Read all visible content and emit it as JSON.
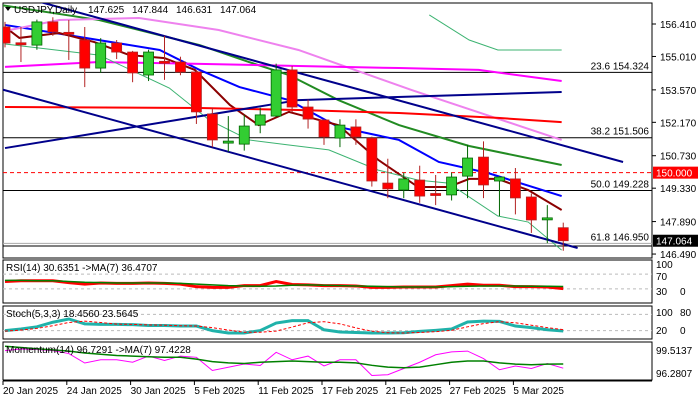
{
  "chart_data": {
    "type": "candlestick",
    "symbol_title": "USDJPY,Daily",
    "ohlc_readout": [
      "147.625",
      "147.844",
      "146.631",
      "147.064"
    ],
    "price_axis": {
      "min": 146.49,
      "max": 156.41,
      "ticks": [
        "156.410",
        "155.010",
        "153.570",
        "152.170",
        "150.730",
        "149.330",
        "147.890",
        "146.490"
      ]
    },
    "price_markers": [
      {
        "label": "150.000",
        "value": 150.0,
        "color": "#ff0000",
        "text_color": "#ffffff",
        "dashed": true
      },
      {
        "label": "147.064",
        "value": 147.064,
        "color": "#000000",
        "text_color": "#ffffff",
        "dashed": false
      }
    ],
    "fib_levels": [
      {
        "label": "23.6 154.324",
        "value": 154.324
      },
      {
        "label": "38.2 151.506",
        "value": 151.506
      },
      {
        "label": "50.0 149.228",
        "value": 149.228
      },
      {
        "label": "61.8 146.950",
        "value": 146.95
      }
    ],
    "dates": [
      "20 Jan 2025",
      "24 Jan 2025",
      "30 Jan 2025",
      "5 Feb 2025",
      "11 Feb 2025",
      "17 Feb 2025",
      "21 Feb 2025",
      "27 Feb 2025",
      "5 Mar 2025"
    ],
    "candles": [
      [
        156.28,
        156.5,
        155.4,
        155.59
      ],
      [
        155.6,
        156.28,
        154.77,
        155.59
      ],
      [
        155.5,
        156.6,
        155.3,
        156.5
      ],
      [
        156.5,
        156.7,
        155.9,
        156.07
      ],
      [
        156.05,
        156.58,
        154.86,
        156.02
      ],
      [
        155.72,
        156.28,
        153.69,
        154.51
      ],
      [
        154.51,
        155.8,
        154.3,
        155.59
      ],
      [
        155.59,
        155.72,
        154.9,
        155.2
      ],
      [
        155.2,
        155.25,
        153.9,
        154.3
      ],
      [
        154.21,
        155.3,
        153.95,
        155.2
      ],
      [
        154.8,
        155.9,
        154.0,
        154.77
      ],
      [
        154.77,
        155.0,
        154.2,
        154.34
      ],
      [
        154.34,
        154.4,
        152.1,
        152.62
      ],
      [
        152.53,
        152.8,
        151.1,
        151.41
      ],
      [
        151.33,
        152.44,
        150.9,
        151.36
      ],
      [
        151.23,
        152.5,
        150.95,
        152.01
      ],
      [
        152.05,
        152.8,
        151.7,
        152.49
      ],
      [
        152.44,
        154.7,
        152.4,
        154.43
      ],
      [
        154.43,
        154.6,
        152.6,
        152.83
      ],
      [
        152.83,
        153.15,
        151.9,
        152.31
      ],
      [
        152.27,
        152.3,
        151.2,
        151.54
      ],
      [
        151.49,
        152.3,
        151.1,
        152.05
      ],
      [
        151.97,
        152.3,
        151.2,
        151.54
      ],
      [
        151.49,
        151.55,
        149.4,
        149.64
      ],
      [
        149.55,
        150.6,
        148.9,
        149.3
      ],
      [
        149.25,
        150.0,
        148.9,
        149.73
      ],
      [
        149.68,
        150.3,
        148.7,
        148.99
      ],
      [
        149.1,
        149.9,
        148.6,
        149.08
      ],
      [
        149.04,
        150.0,
        148.8,
        149.81
      ],
      [
        149.85,
        151.2,
        148.9,
        150.63
      ],
      [
        150.67,
        151.35,
        148.9,
        149.47
      ],
      [
        149.64,
        149.85,
        148.13,
        149.81
      ],
      [
        149.73,
        150.2,
        148.2,
        148.91
      ],
      [
        148.95,
        149.1,
        147.4,
        147.96
      ],
      [
        148.03,
        148.6,
        146.96,
        148.05
      ],
      [
        147.625,
        147.844,
        146.631,
        147.064
      ]
    ],
    "overlays": [
      {
        "name": "ma-fast-blue",
        "color": "#0000ff",
        "width": 2,
        "points": [
          [
            0,
            156.37
          ],
          [
            4.7,
            155.85
          ],
          [
            9.7,
            155.29
          ],
          [
            12.2,
            154.43
          ],
          [
            14.7,
            153.69
          ],
          [
            17.8,
            153.13
          ],
          [
            20.9,
            151.97
          ],
          [
            24.7,
            151.41
          ],
          [
            27.2,
            150.46
          ],
          [
            30.3,
            149.98
          ],
          [
            34.9,
            148.99
          ]
        ]
      },
      {
        "name": "ma-5-darkred",
        "color": "#8b0000",
        "width": 2,
        "points": [
          [
            0,
            156.28
          ],
          [
            0.9,
            155.81
          ],
          [
            3.4,
            156.02
          ],
          [
            5.6,
            155.63
          ],
          [
            7.8,
            155.07
          ],
          [
            10,
            154.94
          ],
          [
            11.9,
            154.43
          ],
          [
            14.1,
            152.92
          ],
          [
            15.9,
            152.05
          ],
          [
            17.8,
            152.62
          ],
          [
            20.9,
            152.05
          ],
          [
            23.4,
            150.55
          ],
          [
            25.9,
            149.38
          ],
          [
            27.8,
            149.38
          ],
          [
            29.1,
            149.73
          ],
          [
            30.9,
            149.73
          ],
          [
            32.8,
            149.25
          ],
          [
            34.9,
            148.39
          ]
        ]
      },
      {
        "name": "ma-50-green",
        "color": "#228b22",
        "width": 2,
        "points": [
          [
            -0.3,
            157.23
          ],
          [
            5.9,
            156.58
          ],
          [
            12.2,
            155.5
          ],
          [
            15.3,
            154.77
          ],
          [
            17.8,
            154.21
          ],
          [
            20.9,
            153.13
          ],
          [
            24.7,
            152.05
          ],
          [
            29.1,
            151.15
          ],
          [
            34.9,
            150.33
          ]
        ]
      },
      {
        "name": "ma-100-pink",
        "color": "#ee82ee",
        "width": 2,
        "points": [
          [
            0.3,
            156.15
          ],
          [
            3.4,
            156.58
          ],
          [
            8.4,
            156.67
          ],
          [
            13.4,
            156.15
          ],
          [
            18.4,
            155.29
          ],
          [
            25.5,
            153.56
          ],
          [
            34.9,
            151.41
          ]
        ]
      },
      {
        "name": "ma-200-magenta",
        "color": "#ff00ff",
        "width": 2,
        "points": [
          [
            0,
            154.56
          ],
          [
            5.9,
            154.77
          ],
          [
            12.2,
            154.69
          ],
          [
            18.4,
            154.6
          ],
          [
            24.7,
            154.51
          ],
          [
            29.7,
            154.43
          ],
          [
            34.9,
            153.95
          ]
        ]
      },
      {
        "name": "ma-red",
        "color": "#ff0000",
        "width": 2,
        "points": [
          [
            0,
            152.83
          ],
          [
            12.2,
            152.79
          ],
          [
            18.4,
            152.7
          ],
          [
            24.7,
            152.57
          ],
          [
            30.9,
            152.36
          ],
          [
            34.9,
            152.18
          ]
        ]
      },
      {
        "name": "band-lower-green",
        "color": "#3cb371",
        "width": 1,
        "points": [
          [
            0,
            155.55
          ],
          [
            5.9,
            155.07
          ],
          [
            10.3,
            153.65
          ],
          [
            12.8,
            152.27
          ],
          [
            15.3,
            151.41
          ],
          [
            17.8,
            151.19
          ],
          [
            20.3,
            150.98
          ],
          [
            23.4,
            150.11
          ],
          [
            25.9,
            149.68
          ],
          [
            27.8,
            149.55
          ],
          [
            30.9,
            148.13
          ],
          [
            32.8,
            147.87
          ],
          [
            34.9,
            146.66
          ]
        ]
      },
      {
        "name": "band-upper-green",
        "color": "#3cb371",
        "width": 1,
        "points": [
          [
            26.6,
            156.8
          ],
          [
            29.1,
            155.72
          ],
          [
            30.9,
            155.29
          ],
          [
            34.9,
            155.29
          ]
        ]
      },
      {
        "name": "trendline-upper",
        "color": "#00008b",
        "width": 2,
        "points": [
          [
            2.2,
            157.36
          ],
          [
            38.75,
            150.46
          ]
        ]
      },
      {
        "name": "trendline-lower",
        "color": "#00008b",
        "width": 2,
        "points": [
          [
            -0.3,
            153.61
          ],
          [
            35.9,
            146.75
          ]
        ]
      },
      {
        "name": "trendline-rising",
        "color": "#00008b",
        "width": 2,
        "points": [
          [
            0,
            151.06
          ],
          [
            18.4,
            153.13
          ],
          [
            34.9,
            153.48
          ]
        ]
      }
    ],
    "indicators": [
      {
        "name": "rsi",
        "title": "RSI(14) 30.6351  ->MA(7) 36.4707",
        "ticks": [
          "100",
          "70",
          "30",
          "0"
        ],
        "levels": [
          70,
          30
        ],
        "range": [
          0,
          100
        ],
        "series": [
          {
            "name": "RSI",
            "color": "#ff0000",
            "width": 3,
            "dashed": false,
            "values": [
              50,
              52,
              52,
              52,
              47,
              43,
              46,
              45,
              45,
              46,
              45,
              43,
              36,
              34,
              34,
              39,
              39,
              50,
              42,
              41,
              39,
              39,
              38,
              34,
              34,
              35,
              35,
              35,
              39,
              43,
              40,
              40,
              36,
              36,
              35,
              30.6
            ]
          },
          {
            "name": "MA",
            "color": "#008000",
            "width": 1.5,
            "dashed": false,
            "values": [
              53,
              53,
              52,
              52,
              50,
              48,
              47,
              46,
              46,
              46,
              46,
              45,
              43,
              41,
              39,
              38,
              37,
              38,
              40,
              41,
              40,
              39,
              38,
              37,
              36,
              35,
              35,
              35,
              36,
              37,
              38,
              38,
              38,
              37,
              37,
              36.5
            ]
          }
        ]
      },
      {
        "name": "stoch",
        "title": "Stoch(5,3,3) 18.4560 23.5645",
        "ticks": [
          "100",
          "80",
          "20",
          "0"
        ],
        "levels": [
          80,
          20
        ],
        "range": [
          0,
          100
        ],
        "series": [
          {
            "name": "K",
            "color": "#20b2aa",
            "width": 3,
            "dashed": false,
            "values": [
              20,
              26,
              34,
              51,
              63,
              45,
              43,
              43,
              42,
              39,
              39,
              37,
              37,
              20,
              11,
              11,
              20,
              48,
              57,
              57,
              23,
              15,
              13,
              11,
              11,
              12,
              17,
              21,
              26,
              52,
              55,
              54,
              37,
              31,
              23,
              18.5
            ]
          },
          {
            "name": "D",
            "color": "#ff0000",
            "width": 1,
            "dashed": true,
            "values": [
              18,
              22,
              28,
              38,
              50,
              55,
              50,
              44,
              43,
              41,
              40,
              38,
              37,
              31,
              22,
              14,
              14,
              18,
              33,
              49,
              53,
              45,
              30,
              18,
              12,
              11,
              13,
              16,
              21,
              34,
              46,
              53,
              49,
              40,
              31,
              23.6
            ]
          }
        ]
      },
      {
        "name": "momentum",
        "title": "Momentum(14) 96.7291  ->MA(7) 97.4228",
        "ticks": [
          "99.5137",
          "96.2807"
        ],
        "levels": [],
        "range": [
          95.3,
          100.5
        ],
        "series": [
          {
            "name": "Momentum",
            "color": "#ff00ff",
            "width": 1,
            "dashed": false,
            "values": [
              99.59,
              99.84,
              99.76,
              99.59,
              99.11,
              97.57,
              98.1,
              98.1,
              97.7,
              98.7,
              97.98,
              98.7,
              98.5,
              96.36,
              96.89,
              97.41,
              97.17,
              99.31,
              98.1,
              98.7,
              97.09,
              98.1,
              98.1,
              95.55,
              95.67,
              96.68,
              97.7,
              98.91,
              99.39,
              99.51,
              98.3,
              96.48,
              97.09,
              96.68,
              97.49,
              96.73
            ]
          },
          {
            "name": "MA",
            "color": "#008000",
            "width": 1.5,
            "dashed": false,
            "values": [
              100.3,
              100.1,
              99.9,
              99.7,
              99.5,
              99.2,
              99.0,
              98.8,
              98.7,
              98.6,
              98.5,
              98.5,
              98.2,
              97.8,
              97.6,
              97.5,
              97.7,
              97.8,
              97.9,
              97.8,
              97.7,
              97.7,
              97.6,
              97.2,
              96.9,
              96.8,
              96.9,
              97.3,
              97.7,
              97.9,
              97.9,
              97.6,
              97.4,
              97.3,
              97.4,
              97.42
            ]
          }
        ]
      }
    ],
    "colors": {
      "bull": "#32cd32",
      "bear": "#ff0000",
      "bull_edge": "#006400",
      "bear_edge": "#b22222"
    }
  }
}
